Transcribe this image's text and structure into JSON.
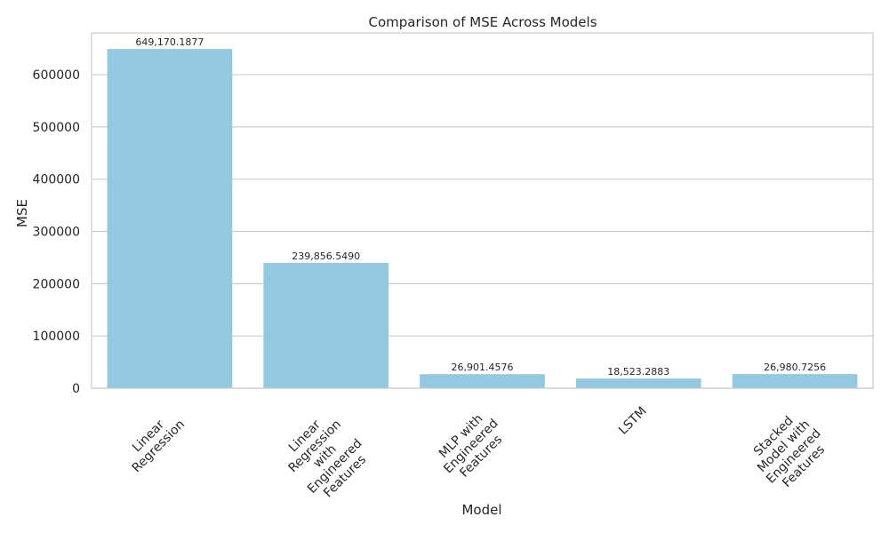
{
  "chart_data": {
    "type": "bar",
    "title": "Comparison of MSE Across Models",
    "xlabel": "Model",
    "ylabel": "MSE",
    "ylim": [
      0,
      680000
    ],
    "yticks": [
      0,
      100000,
      200000,
      300000,
      400000,
      500000,
      600000
    ],
    "ytick_labels": [
      "0",
      "100000",
      "200000",
      "300000",
      "400000",
      "500000",
      "600000"
    ],
    "grid": "horizontal",
    "bar_color": "#92c9df",
    "categories": [
      "Linear Regression",
      "Linear Regression with Engineered Features",
      "MLP with Engineered Features",
      "LSTM",
      "Stacked Model with Engineered Features"
    ],
    "category_lines": [
      [
        "Linear",
        "Regression"
      ],
      [
        "Linear",
        "Regression",
        "with",
        "Engineered",
        "Features"
      ],
      [
        "MLP with",
        "Engineered",
        "Features"
      ],
      [
        "LSTM"
      ],
      [
        "Stacked",
        "Model with",
        "Engineered",
        "Features"
      ]
    ],
    "values": [
      649170.1877,
      239856.549,
      26901.4576,
      18523.2883,
      26980.7256
    ],
    "value_labels": [
      "649,170.1877",
      "239,856.5490",
      "26,901.4576",
      "18,523.2883",
      "26,980.7256"
    ]
  }
}
